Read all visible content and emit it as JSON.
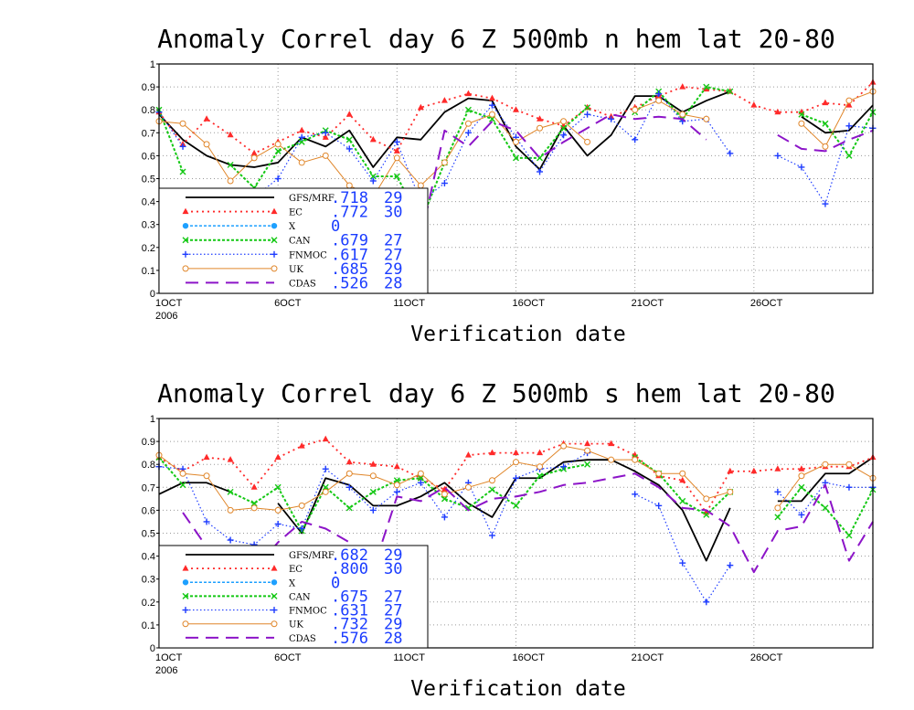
{
  "colors": {
    "gfs": "#000000",
    "ec": "#ff2a2a",
    "x": "#1ea0ff",
    "can": "#14c814",
    "fnmoc": "#1e3cff",
    "uk": "#e0862a",
    "cdas": "#8c14c8",
    "score_text": "#1a3cff"
  },
  "chart_data": [
    {
      "type": "line",
      "title": "Anomaly Correl   day 6   Z 500mb   n hem   lat 20-80",
      "xlabel": "Verification date",
      "ylabel": "",
      "ylim": [
        0,
        1
      ],
      "yticks": [
        "0",
        "0.1",
        "0.2",
        "0.3",
        "0.4",
        "0.5",
        "0.6",
        "0.7",
        "0.8",
        "0.9",
        "1"
      ],
      "xlim": [
        1,
        31
      ],
      "xticks": [
        {
          "x": 1,
          "label": "1OCT",
          "sub": "2006"
        },
        {
          "x": 6,
          "label": "6OCT"
        },
        {
          "x": 11,
          "label": "11OCT"
        },
        {
          "x": 16,
          "label": "16OCT"
        },
        {
          "x": 21,
          "label": "21OCT"
        },
        {
          "x": 26,
          "label": "26OCT"
        }
      ],
      "grid": true,
      "legend": [
        {
          "key": "gfs",
          "name": "GFS/MRF",
          "score": ".718",
          "count": "29"
        },
        {
          "key": "ec",
          "name": "EC",
          "score": ".772",
          "count": "30"
        },
        {
          "key": "x",
          "name": "X",
          "score": "0",
          "count": ""
        },
        {
          "key": "can",
          "name": "CAN",
          "score": ".679",
          "count": "27"
        },
        {
          "key": "fnmoc",
          "name": "FNMOC",
          "score": ".617",
          "count": "27"
        },
        {
          "key": "uk",
          "name": "UK",
          "score": ".685",
          "count": "29"
        },
        {
          "key": "cdas",
          "name": "CDAS",
          "score": ".526",
          "count": "28"
        }
      ],
      "series": [
        {
          "key": "gfs",
          "values": [
            0.78,
            0.67,
            0.6,
            0.56,
            0.55,
            0.57,
            0.68,
            0.64,
            0.71,
            0.55,
            0.68,
            0.67,
            0.79,
            0.85,
            0.84,
            0.64,
            0.54,
            0.73,
            0.6,
            0.69,
            0.86,
            0.86,
            0.79,
            0.84,
            0.88,
            null,
            null,
            0.77,
            0.7,
            0.71,
            0.82,
            0.79
          ]
        },
        {
          "key": "ec",
          "values": [
            0.79,
            0.65,
            0.76,
            0.69,
            0.61,
            0.66,
            0.71,
            0.68,
            0.78,
            0.67,
            0.62,
            0.81,
            0.84,
            0.87,
            0.85,
            0.8,
            0.76,
            0.73,
            0.81,
            0.77,
            0.81,
            0.86,
            0.9,
            0.89,
            0.88,
            0.82,
            0.79,
            0.79,
            0.83,
            0.82,
            0.92,
            0.84
          ]
        },
        {
          "key": "can",
          "values": [
            0.8,
            0.53,
            null,
            0.56,
            0.46,
            0.62,
            0.66,
            0.71,
            0.67,
            0.51,
            0.51,
            0.31,
            0.57,
            0.8,
            0.76,
            0.59,
            0.59,
            0.72,
            0.81,
            null,
            0.79,
            0.88,
            0.76,
            0.9,
            0.88,
            null,
            null,
            0.78,
            0.74,
            0.6,
            0.79,
            0.79
          ]
        },
        {
          "key": "fnmoc",
          "values": [
            0.79,
            0.64,
            null,
            0.37,
            0.42,
            0.5,
            0.68,
            0.7,
            0.63,
            0.49,
            0.66,
            0.4,
            0.48,
            0.7,
            0.82,
            0.68,
            0.53,
            0.69,
            0.78,
            0.76,
            0.67,
            0.87,
            0.75,
            0.76,
            0.61,
            null,
            0.6,
            0.55,
            0.39,
            0.73,
            0.72,
            0.67
          ]
        },
        {
          "key": "uk",
          "values": [
            0.75,
            0.74,
            0.65,
            0.49,
            0.59,
            0.65,
            0.57,
            0.6,
            0.47,
            0.42,
            0.59,
            0.47,
            0.57,
            0.74,
            0.78,
            0.66,
            0.72,
            0.75,
            0.66,
            null,
            0.8,
            0.84,
            0.78,
            0.76,
            null,
            null,
            null,
            0.74,
            0.64,
            0.84,
            0.88,
            0.79
          ]
        },
        {
          "key": "cdas",
          "values": [
            null,
            0.28,
            0.26,
            0.3,
            0.22,
            0.29,
            null,
            0.45,
            0.4,
            0.3,
            0.35,
            0.24,
            0.71,
            0.64,
            0.75,
            0.71,
            0.59,
            0.66,
            0.72,
            0.78,
            0.76,
            0.77,
            0.76,
            0.67,
            null,
            null,
            0.69,
            0.63,
            0.62,
            0.67,
            0.71,
            0.7
          ]
        }
      ]
    },
    {
      "type": "line",
      "title": "Anomaly Correl   day 6   Z 500mb   s hem   lat 20-80",
      "xlabel": "Verification date",
      "ylabel": "",
      "ylim": [
        0,
        1
      ],
      "yticks": [
        "0",
        "0.1",
        "0.2",
        "0.3",
        "0.4",
        "0.5",
        "0.6",
        "0.7",
        "0.8",
        "0.9",
        "1"
      ],
      "xlim": [
        1,
        31
      ],
      "xticks": [
        {
          "x": 1,
          "label": "1OCT",
          "sub": "2006"
        },
        {
          "x": 6,
          "label": "6OCT"
        },
        {
          "x": 11,
          "label": "11OCT"
        },
        {
          "x": 16,
          "label": "16OCT"
        },
        {
          "x": 21,
          "label": "21OCT"
        },
        {
          "x": 26,
          "label": "26OCT"
        }
      ],
      "grid": true,
      "legend": [
        {
          "key": "gfs",
          "name": "GFS/MRF",
          "score": ".682",
          "count": "29"
        },
        {
          "key": "ec",
          "name": "EC",
          "score": ".800",
          "count": "30"
        },
        {
          "key": "x",
          "name": "X",
          "score": "0",
          "count": ""
        },
        {
          "key": "can",
          "name": "CAN",
          "score": ".675",
          "count": "27"
        },
        {
          "key": "fnmoc",
          "name": "FNMOC",
          "score": ".631",
          "count": "27"
        },
        {
          "key": "uk",
          "name": "UK",
          "score": ".732",
          "count": "29"
        },
        {
          "key": "cdas",
          "name": "CDAS",
          "score": ".576",
          "count": "28"
        }
      ],
      "series": [
        {
          "key": "gfs",
          "values": [
            0.67,
            0.72,
            0.72,
            0.68,
            null,
            0.63,
            0.5,
            0.74,
            0.71,
            0.62,
            0.62,
            0.66,
            0.72,
            0.63,
            0.57,
            0.74,
            0.74,
            0.81,
            0.82,
            0.82,
            0.77,
            0.71,
            0.6,
            0.38,
            0.61,
            null,
            0.64,
            0.64,
            0.76,
            0.76,
            0.83
          ]
        },
        {
          "key": "ec",
          "values": [
            0.83,
            0.77,
            0.83,
            0.82,
            0.7,
            0.83,
            0.88,
            0.91,
            0.81,
            0.8,
            0.79,
            0.74,
            0.69,
            0.84,
            0.85,
            0.85,
            0.85,
            0.89,
            0.89,
            0.89,
            0.84,
            0.75,
            0.73,
            0.59,
            0.77,
            0.77,
            0.78,
            0.78,
            0.79,
            0.79,
            0.83
          ]
        },
        {
          "key": "can",
          "values": [
            0.83,
            0.71,
            null,
            0.68,
            0.63,
            0.7,
            0.51,
            0.7,
            0.61,
            0.68,
            0.73,
            0.74,
            0.65,
            0.61,
            0.69,
            0.62,
            0.75,
            0.78,
            0.8,
            null,
            0.83,
            0.76,
            0.64,
            0.58,
            0.68,
            null,
            0.57,
            0.7,
            0.61,
            0.49,
            0.69
          ]
        },
        {
          "key": "fnmoc",
          "values": [
            0.79,
            0.78,
            0.55,
            0.47,
            0.45,
            0.54,
            0.52,
            0.78,
            0.7,
            0.6,
            0.68,
            0.72,
            0.57,
            0.72,
            0.49,
            0.74,
            0.78,
            0.79,
            0.85,
            null,
            0.67,
            0.62,
            0.37,
            0.2,
            0.36,
            null,
            0.68,
            0.58,
            0.72,
            0.7,
            0.7
          ]
        },
        {
          "key": "uk",
          "values": [
            0.84,
            0.76,
            0.75,
            0.6,
            0.61,
            0.6,
            0.62,
            0.68,
            0.76,
            0.75,
            0.71,
            0.76,
            0.67,
            0.7,
            0.73,
            0.81,
            0.79,
            0.88,
            0.86,
            0.82,
            0.82,
            0.76,
            0.76,
            0.65,
            0.68,
            null,
            0.61,
            0.75,
            0.8,
            0.8,
            0.74
          ]
        },
        {
          "key": "cdas",
          "values": [
            null,
            0.59,
            0.44,
            0.37,
            0.34,
            0.46,
            0.55,
            0.52,
            0.46,
            0.34,
            0.66,
            0.64,
            0.7,
            0.6,
            0.65,
            0.66,
            0.68,
            0.71,
            0.72,
            0.74,
            0.76,
            0.7,
            0.61,
            0.6,
            0.53,
            0.33,
            0.51,
            0.53,
            0.71,
            0.38,
            0.55
          ]
        }
      ]
    }
  ]
}
